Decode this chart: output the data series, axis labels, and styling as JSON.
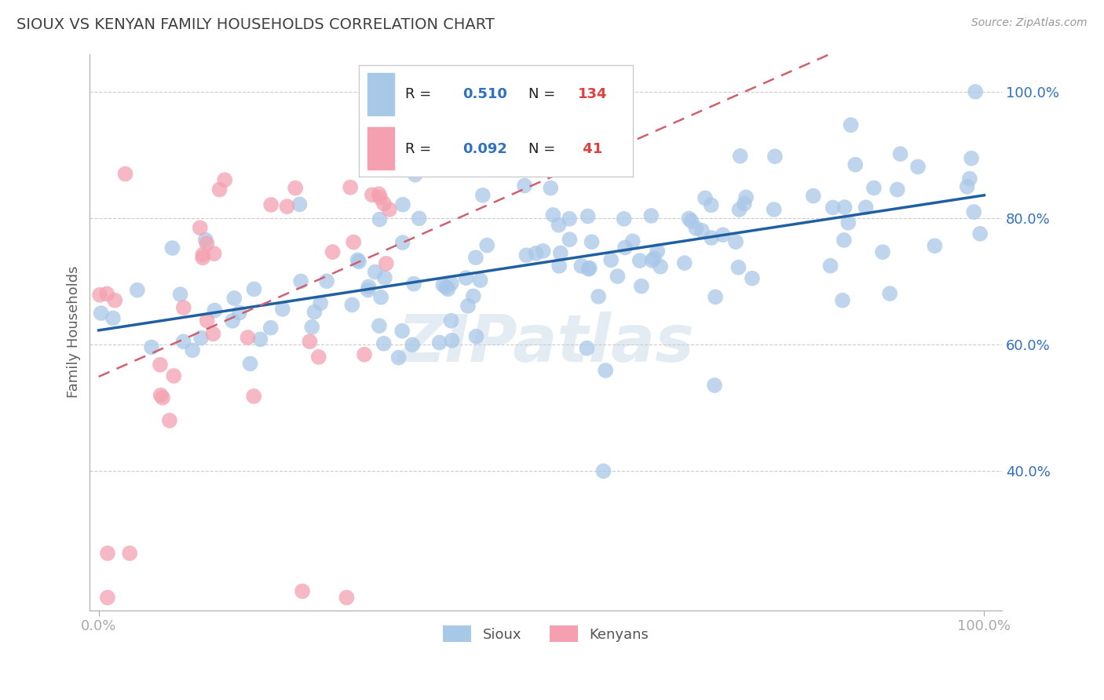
{
  "title": "SIOUX VS KENYAN FAMILY HOUSEHOLDS CORRELATION CHART",
  "source_text": "Source: ZipAtlas.com",
  "ylabel": "Family Households",
  "sioux_R": 0.51,
  "sioux_N": 134,
  "kenyan_R": 0.092,
  "kenyan_N": 41,
  "sioux_color": "#a8c8e8",
  "kenyan_color": "#f4a0b0",
  "sioux_line_color": "#2060a0",
  "kenyan_line_color": "#d06070",
  "legend_R_color": "#3070c0",
  "legend_N_color": "#e04040",
  "background_color": "#ffffff",
  "grid_color": "#cccccc",
  "title_color": "#404040",
  "axis_label_color": "#606060",
  "tick_color": "#3070c0",
  "watermark": "ZIPatlas",
  "legend_label_color": "#202020",
  "bottom_legend_color": "#555555"
}
